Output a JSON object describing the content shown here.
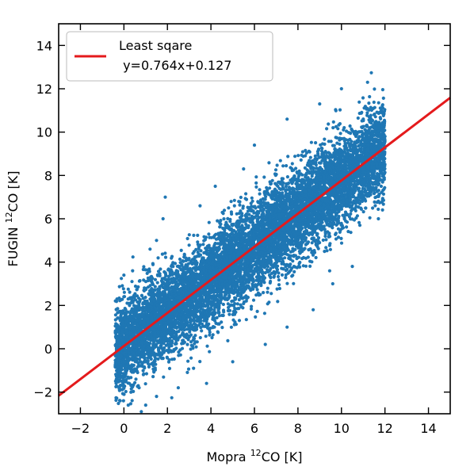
{
  "chart_data": {
    "type": "scatter",
    "title": "",
    "xlabel": {
      "prefix": "Mopra ",
      "sup": "12",
      "suffix": "CO [K]"
    },
    "ylabel": {
      "prefix": "FUGIN ",
      "sup": "12",
      "suffix": "CO [K]"
    },
    "xlim": [
      -3,
      15
    ],
    "ylim": [
      -3,
      15
    ],
    "xticks": [
      -2,
      0,
      2,
      4,
      6,
      8,
      10,
      12,
      14
    ],
    "yticks": [
      -2,
      0,
      2,
      4,
      6,
      8,
      10,
      12,
      14
    ],
    "xtick_labels": [
      "−2",
      "0",
      "2",
      "4",
      "6",
      "8",
      "10",
      "12",
      "14"
    ],
    "ytick_labels": [
      "−2",
      "0",
      "2",
      "4",
      "6",
      "8",
      "10",
      "12",
      "14"
    ],
    "grid": false,
    "legend": {
      "placement": "top-left",
      "entries": [
        {
          "line1": "Least sqare",
          "line2": " y=0.764x+0.127",
          "color": "#e41a1c"
        }
      ]
    },
    "series": [
      {
        "type": "scatter",
        "color": "#1f77b4",
        "distribution": {
          "x_range": [
            -0.4,
            12.0
          ],
          "slope": 0.764,
          "intercept": 0.127,
          "scatter_sd": 1.05
        },
        "points": [
          [
            0.2,
            -2.6
          ],
          [
            0.8,
            -2.9
          ],
          [
            1.0,
            -2.6
          ],
          [
            1.5,
            -2.2
          ],
          [
            2.5,
            -1.8
          ],
          [
            3.2,
            -0.9
          ],
          [
            0.0,
            3.4
          ],
          [
            0.4,
            3.6
          ],
          [
            1.2,
            4.6
          ],
          [
            1.5,
            5.0
          ],
          [
            1.8,
            6.0
          ],
          [
            1.9,
            7.0
          ],
          [
            3.5,
            6.6
          ],
          [
            4.2,
            7.5
          ],
          [
            5.5,
            8.3
          ],
          [
            6.0,
            9.4
          ],
          [
            7.5,
            10.6
          ],
          [
            9.0,
            11.3
          ],
          [
            10.0,
            12.0
          ],
          [
            11.2,
            12.3
          ],
          [
            11.5,
            10.8
          ],
          [
            12.0,
            9.8
          ],
          [
            11.7,
            6.0
          ],
          [
            10.5,
            3.8
          ],
          [
            9.6,
            3.0
          ],
          [
            8.7,
            1.8
          ],
          [
            7.5,
            1.0
          ],
          [
            6.5,
            0.2
          ],
          [
            5.0,
            -0.6
          ],
          [
            3.8,
            -1.6
          ]
        ]
      },
      {
        "type": "line",
        "name": "Least sqare",
        "color": "#e41a1c",
        "slope": 0.764,
        "intercept": 0.127,
        "x": [
          -3,
          15
        ]
      }
    ]
  }
}
